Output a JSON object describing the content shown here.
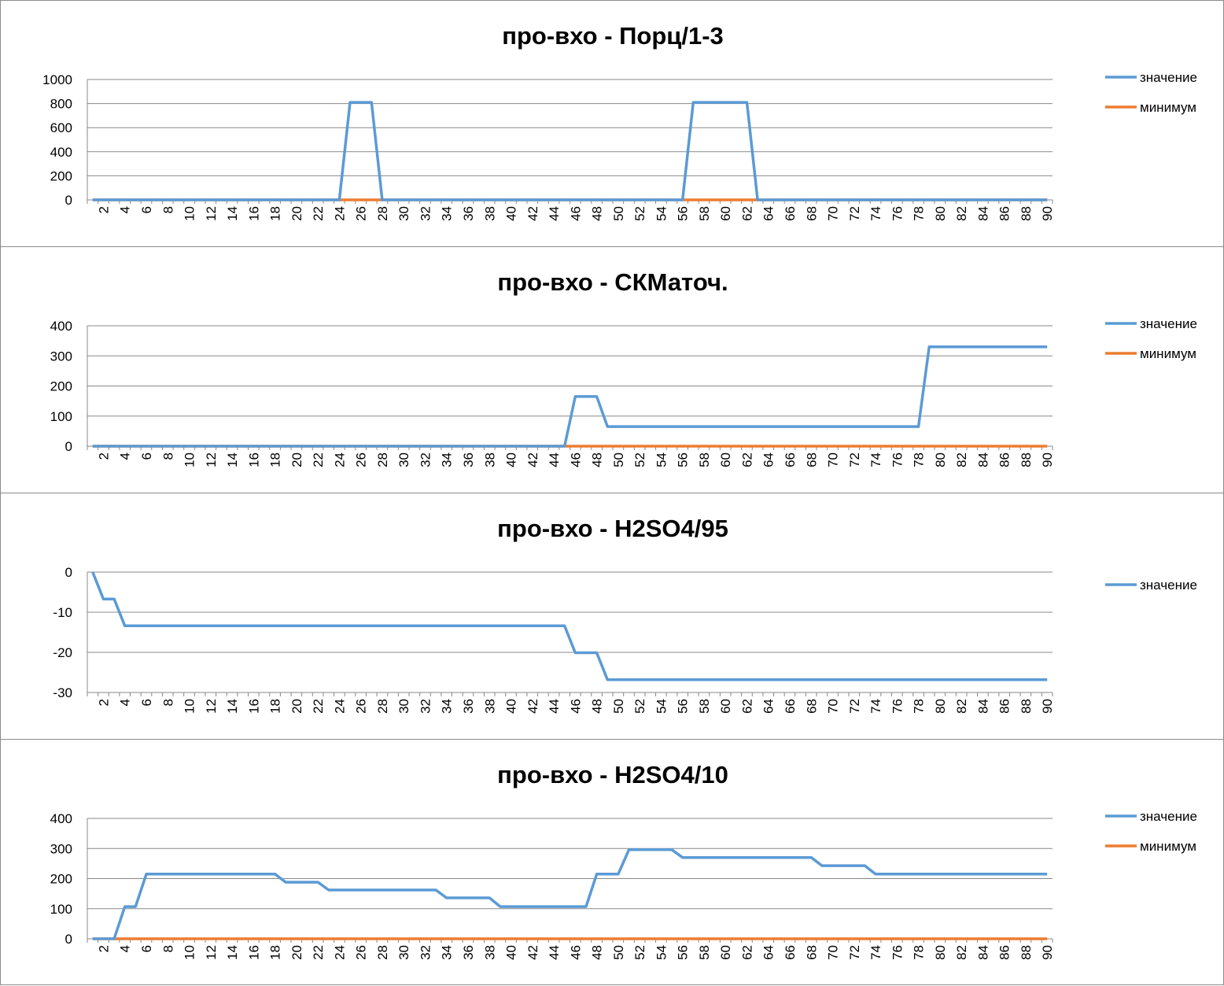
{
  "colors": {
    "series_value": "#5b9bd5",
    "series_min": "#ed7d31",
    "grid": "#888888",
    "axis": "#888888"
  },
  "chart_data": [
    {
      "type": "line",
      "title": "про-вхо - Порц/1-3",
      "x_tick_labels": [
        "2",
        "4",
        "6",
        "8",
        "10",
        "12",
        "14",
        "16",
        "18",
        "20",
        "22",
        "24",
        "26",
        "28",
        "30",
        "32",
        "34",
        "36",
        "38",
        "40",
        "42",
        "44",
        "46",
        "48",
        "50",
        "52",
        "54",
        "56",
        "58",
        "60",
        "62",
        "64",
        "66",
        "68",
        "70",
        "72",
        "74",
        "76",
        "78",
        "80",
        "82",
        "84",
        "86",
        "88",
        "90"
      ],
      "y_ticks": [
        0,
        200,
        400,
        600,
        800,
        1000
      ],
      "ylim": [
        0,
        1000
      ],
      "legend_position": "right",
      "series": [
        {
          "name": "значение",
          "color_key": "series_value",
          "runs": [
            [
              1,
              24,
              0
            ],
            [
              25,
              27,
              810
            ],
            [
              28,
              56,
              0
            ],
            [
              57,
              62,
              810
            ],
            [
              63,
              90,
              0
            ]
          ]
        },
        {
          "name": "минимум",
          "color_key": "series_min",
          "runs": [
            [
              1,
              90,
              0
            ]
          ]
        }
      ]
    },
    {
      "type": "line",
      "title": "про-вхо - СКМаточ.",
      "x_tick_labels": [
        "2",
        "4",
        "6",
        "8",
        "10",
        "12",
        "14",
        "16",
        "18",
        "20",
        "22",
        "24",
        "26",
        "28",
        "30",
        "32",
        "34",
        "36",
        "38",
        "40",
        "42",
        "44",
        "46",
        "48",
        "50",
        "52",
        "54",
        "56",
        "58",
        "60",
        "62",
        "64",
        "66",
        "68",
        "70",
        "72",
        "74",
        "76",
        "78",
        "80",
        "82",
        "84",
        "86",
        "88",
        "90"
      ],
      "y_ticks": [
        0,
        100,
        200,
        300,
        400
      ],
      "ylim": [
        0,
        400
      ],
      "legend_position": "right",
      "series": [
        {
          "name": "значение",
          "color_key": "series_value",
          "runs": [
            [
              1,
              45,
              0
            ],
            [
              46,
              48,
              165
            ],
            [
              49,
              78,
              65
            ],
            [
              79,
              90,
              330
            ]
          ]
        },
        {
          "name": "минимум",
          "color_key": "series_min",
          "runs": [
            [
              1,
              90,
              0
            ]
          ]
        }
      ]
    },
    {
      "type": "line",
      "title": "про-вхо - H2SO4/95",
      "x_tick_labels": [
        "2",
        "4",
        "6",
        "8",
        "10",
        "12",
        "14",
        "16",
        "18",
        "20",
        "22",
        "24",
        "26",
        "28",
        "30",
        "32",
        "34",
        "36",
        "38",
        "40",
        "42",
        "44",
        "46",
        "48",
        "50",
        "52",
        "54",
        "56",
        "58",
        "60",
        "62",
        "64",
        "66",
        "68",
        "70",
        "72",
        "74",
        "76",
        "78",
        "80",
        "82",
        "84",
        "86",
        "88",
        "90"
      ],
      "y_ticks": [
        -30,
        -20,
        -10,
        0
      ],
      "ylim": [
        -30,
        0
      ],
      "legend_position": "right",
      "series": [
        {
          "name": "значение",
          "color_key": "series_value",
          "runs": [
            [
              1,
              1,
              0
            ],
            [
              2,
              3,
              -6.7
            ],
            [
              4,
              45,
              -13.4
            ],
            [
              46,
              48,
              -20.1
            ],
            [
              49,
              90,
              -26.8
            ]
          ]
        }
      ]
    },
    {
      "type": "line",
      "title": "про-вхо - H2SO4/10",
      "x_tick_labels": [
        "2",
        "4",
        "6",
        "8",
        "10",
        "12",
        "14",
        "16",
        "18",
        "20",
        "22",
        "24",
        "26",
        "28",
        "30",
        "32",
        "34",
        "36",
        "38",
        "40",
        "42",
        "44",
        "46",
        "48",
        "50",
        "52",
        "54",
        "56",
        "58",
        "60",
        "62",
        "64",
        "66",
        "68",
        "70",
        "72",
        "74",
        "76",
        "78",
        "80",
        "82",
        "84",
        "86",
        "88",
        "90"
      ],
      "y_ticks": [
        0,
        100,
        200,
        300,
        400
      ],
      "ylim": [
        0,
        400
      ],
      "legend_position": "right",
      "series": [
        {
          "name": "значение",
          "color_key": "series_value",
          "runs": [
            [
              1,
              3,
              0
            ],
            [
              4,
              5,
              107
            ],
            [
              6,
              18,
              215
            ],
            [
              19,
              22,
              188
            ],
            [
              23,
              33,
              162
            ],
            [
              34,
              38,
              136
            ],
            [
              39,
              47,
              107
            ],
            [
              48,
              50,
              215
            ],
            [
              51,
              55,
              296
            ],
            [
              56,
              68,
              270
            ],
            [
              69,
              73,
              243
            ],
            [
              74,
              90,
              215
            ]
          ]
        },
        {
          "name": "минимум",
          "color_key": "series_min",
          "runs": [
            [
              1,
              90,
              0
            ]
          ]
        }
      ]
    }
  ]
}
